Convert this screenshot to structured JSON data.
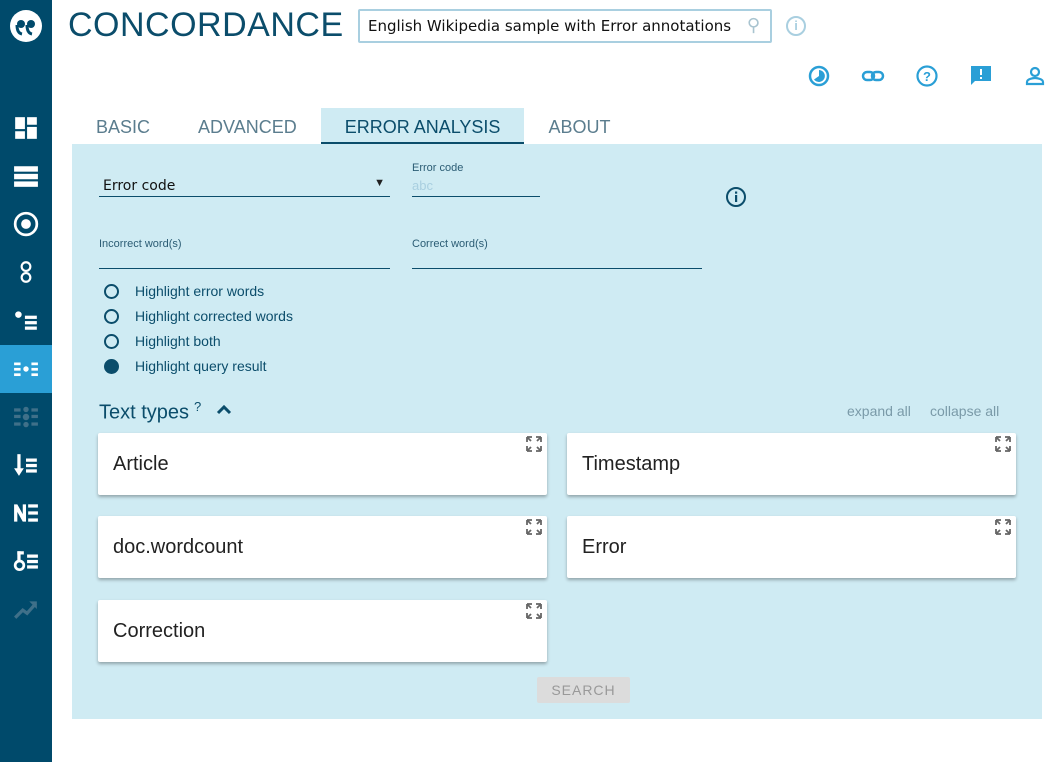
{
  "app": {
    "title": "CONCORDANCE",
    "corpus": "English Wikipedia sample with Error annotations"
  },
  "sidebar": {
    "items": [
      "dashboard-icon",
      "server-list-icon",
      "target-icon",
      "two-circles-icon",
      "dot-list-icon",
      "dot-grid-icon",
      "dot-grid-disabled-icon",
      "sort-down-list-icon",
      "ne-list-icon",
      "key-list-icon",
      "trend-icon"
    ],
    "active_index": 5,
    "active_color": "#2a9fd6",
    "bg": "#004a6b"
  },
  "toolbar": {
    "icons": [
      "history-icon",
      "link-icon",
      "help-icon",
      "feedback-icon",
      "user-icon"
    ]
  },
  "tabs": [
    {
      "label": "BASIC"
    },
    {
      "label": "ADVANCED"
    },
    {
      "label": "ERROR ANALYSIS",
      "active": true
    },
    {
      "label": "ABOUT"
    }
  ],
  "form": {
    "select_value": "Error code",
    "error_code_label": "Error code",
    "error_code_placeholder": "abc",
    "incorrect_label": "Incorrect word(s)",
    "correct_label": "Correct word(s)",
    "radios": [
      {
        "label": "Highlight error words",
        "checked": false
      },
      {
        "label": "Highlight corrected words",
        "checked": false
      },
      {
        "label": "Highlight both",
        "checked": false
      },
      {
        "label": "Highlight query result",
        "checked": true
      }
    ]
  },
  "text_types": {
    "title": "Text types",
    "help": "?",
    "expand_all": "expand all",
    "collapse_all": "collapse all",
    "cards": [
      "Article",
      "Timestamp",
      "doc.wordcount",
      "Error",
      "Correction"
    ]
  },
  "search_label": "SEARCH"
}
